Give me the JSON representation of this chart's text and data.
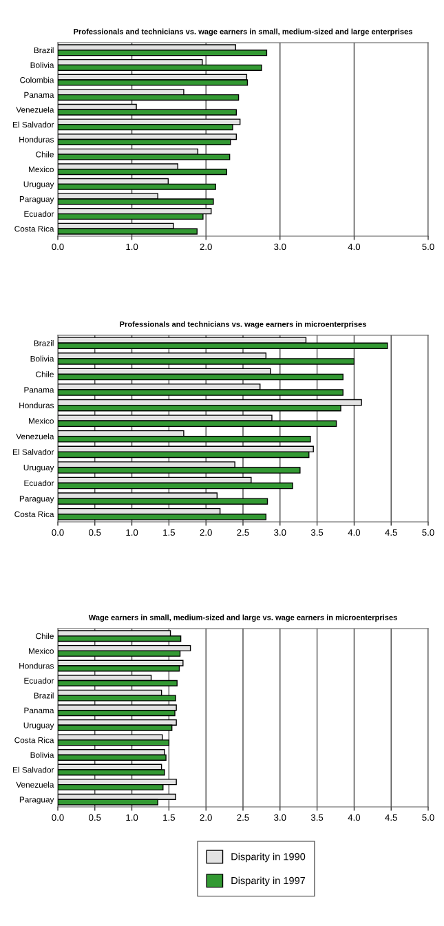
{
  "chart_data": [
    {
      "type": "bar",
      "orientation": "horizontal",
      "title": "Professionals and technicians vs. wage earners in small, medium-sized and large enterprises",
      "categories": [
        "Brazil",
        "Bolivia",
        "Colombia",
        "Panama",
        "Venezuela",
        "El Salvador",
        "Honduras",
        "Chile",
        "Mexico",
        "Uruguay",
        "Paraguay",
        "Ecuador",
        "Costa Rica"
      ],
      "series": [
        {
          "color": "#e3e3e3",
          "values": [
            2.4,
            1.95,
            2.55,
            1.7,
            1.06,
            2.46,
            2.41,
            1.89,
            1.62,
            1.49,
            1.35,
            2.07,
            1.56
          ]
        },
        {
          "color": "#339933",
          "values": [
            2.82,
            2.75,
            2.56,
            2.44,
            2.41,
            2.36,
            2.33,
            2.32,
            2.28,
            2.13,
            2.1,
            1.96,
            1.88
          ]
        }
      ],
      "xlim": [
        0,
        5
      ],
      "xticks": [
        {
          "value": 0,
          "label": "0.0"
        },
        {
          "value": 1,
          "label": "1.0"
        },
        {
          "value": 2,
          "label": "2.0"
        },
        {
          "value": 3,
          "label": "3.0"
        },
        {
          "value": 4,
          "label": "4.0"
        },
        {
          "value": 5,
          "label": "5.0"
        }
      ],
      "grid": "x"
    },
    {
      "type": "bar",
      "orientation": "horizontal",
      "title": "Professionals and technicians vs. wage earners in microenterprises",
      "categories": [
        "Brazil",
        "Bolivia",
        "Chile",
        "Panama",
        "Honduras",
        "Mexico",
        "Venezuela",
        "El Salvador",
        "Uruguay",
        "Ecuador",
        "Paraguay",
        "Costa Rica"
      ],
      "series": [
        {
          "color": "#e3e3e3",
          "values": [
            3.35,
            2.81,
            2.87,
            2.73,
            4.1,
            2.89,
            1.7,
            3.45,
            2.39,
            2.61,
            2.15,
            2.19
          ]
        },
        {
          "color": "#339933",
          "values": [
            4.45,
            4.0,
            3.85,
            3.85,
            3.82,
            3.76,
            3.41,
            3.39,
            3.27,
            3.17,
            2.83,
            2.81
          ]
        }
      ],
      "xlim": [
        0,
        5
      ],
      "xticks": [
        {
          "value": 0,
          "label": "0.0"
        },
        0.5,
        {
          "value": 1,
          "label": "1.0"
        },
        1.5,
        {
          "value": 2,
          "label": "2.0"
        },
        2.5,
        {
          "value": 3,
          "label": "3.0"
        },
        3.5,
        {
          "value": 4,
          "label": "4.0"
        },
        4.5,
        {
          "value": 5,
          "label": "5.0"
        }
      ],
      "grid": "x"
    },
    {
      "type": "bar",
      "orientation": "horizontal",
      "title": "Wage earners in small, medium-sized and large vs. wage earners in microenterprises",
      "categories": [
        "Chile",
        "Mexico",
        "Honduras",
        "Ecuador",
        "Brazil",
        "Panama",
        "Uruguay",
        "Costa Rica",
        "Bolivia",
        "El Salvador",
        "Venezuela",
        "Paraguay"
      ],
      "series": [
        {
          "name": "Disparity in 1990",
          "color": "#e3e3e3",
          "values": [
            1.52,
            1.79,
            1.69,
            1.26,
            1.4,
            1.6,
            1.6,
            1.41,
            1.44,
            1.4,
            1.6,
            1.59
          ]
        },
        {
          "name": "Disparity in 1997",
          "color": "#339933",
          "values": [
            1.66,
            1.65,
            1.64,
            1.61,
            1.59,
            1.58,
            1.54,
            1.5,
            1.46,
            1.44,
            1.42,
            1.35
          ]
        }
      ],
      "xlim": [
        0,
        5
      ],
      "xticks": [
        {
          "value": 0,
          "label": "0.0"
        },
        0.5,
        {
          "value": 1,
          "label": "1.0"
        },
        1.5,
        {
          "value": 2,
          "label": "2.0"
        },
        2.5,
        {
          "value": 3,
          "label": "3.0"
        },
        3.5,
        {
          "value": 4,
          "label": "4.0"
        },
        4.5,
        {
          "value": 5,
          "label": "5.0"
        }
      ],
      "grid": "x",
      "legend": "bottom"
    }
  ]
}
